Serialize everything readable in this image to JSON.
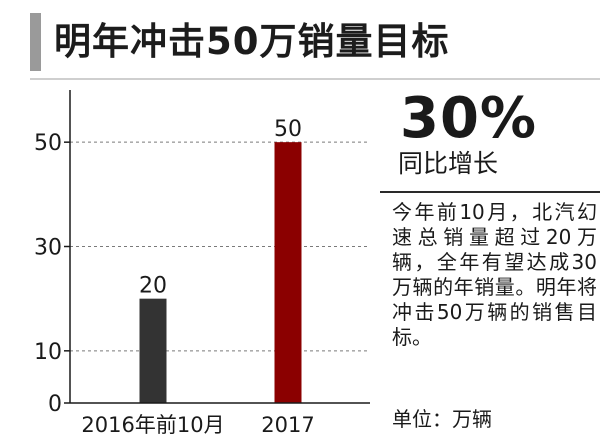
{
  "header": {
    "title": "明年冲击50万销量目标"
  },
  "stat": {
    "value": "30%",
    "label": "同比增长"
  },
  "description": "今年前10月，北汽幻速总销量超过20万辆，全年有望达成30万辆的年销量。明年将冲击50万辆的销售目标。",
  "unit": "单位：万辆",
  "colors": {
    "bar_2016": "#333333",
    "bar_2017": "#8b0000",
    "grid": "#7a7a7a",
    "axis": "#1a1a1a",
    "header_bar": "#9a9a9a"
  },
  "chart_data": {
    "type": "bar",
    "categories": [
      "2016年前10月",
      "2017"
    ],
    "values": [
      20,
      50
    ],
    "data_labels": [
      "20",
      "50"
    ],
    "yticks": [
      0,
      10,
      30,
      50
    ],
    "ylim": [
      0,
      60
    ],
    "grid": true,
    "title": "",
    "xlabel": "",
    "ylabel": ""
  }
}
